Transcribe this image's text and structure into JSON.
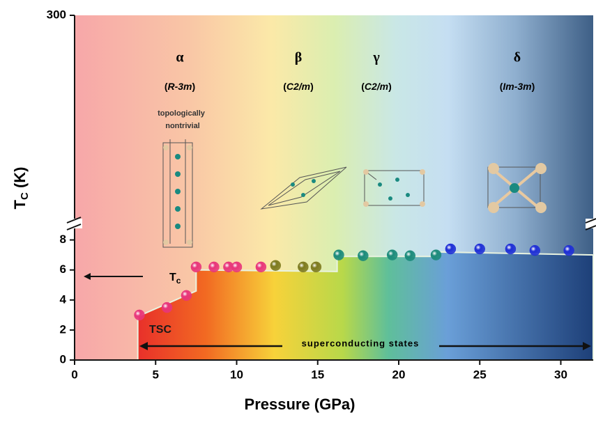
{
  "chart_data": {
    "type": "scatter",
    "xlabel": "Pressure (GPa)",
    "ylabel": [
      "T",
      "C",
      " (K)"
    ],
    "xlim": [
      0,
      32
    ],
    "xticks": [
      0,
      5,
      10,
      15,
      20,
      25,
      30
    ],
    "ylim": [
      0,
      300
    ],
    "ybreak": 9,
    "yticks": [
      0,
      2,
      4,
      6,
      8,
      300
    ],
    "series": [
      {
        "color": "#e8357a",
        "x": [
          4.0,
          5.7,
          6.9,
          7.5,
          8.6,
          9.5,
          10.0,
          11.5
        ],
        "values": [
          3.0,
          3.5,
          4.3,
          6.2,
          6.2,
          6.2,
          6.2,
          6.2
        ]
      },
      {
        "color": "#7d7a1e",
        "x": [
          12.4,
          14.1,
          14.9
        ],
        "values": [
          6.3,
          6.2,
          6.2
        ]
      },
      {
        "color": "#1a8a7a",
        "x": [
          16.3,
          17.8,
          19.6,
          20.7,
          22.3
        ],
        "values": [
          7.0,
          6.95,
          7.0,
          6.95,
          7.0
        ]
      },
      {
        "color": "#1f2fd6",
        "x": [
          23.2,
          25.0,
          26.9,
          28.4,
          30.5
        ],
        "values": [
          7.4,
          7.4,
          7.4,
          7.3,
          7.3
        ]
      }
    ],
    "tsc_boundary": {
      "x": [
        3.9,
        3.9,
        7.5,
        7.5,
        16.2,
        16.2,
        22.4,
        22.4,
        32
      ],
      "values": [
        0,
        2.9,
        4.6,
        6.0,
        5.9,
        6.9,
        6.9,
        7.2,
        7.0
      ]
    },
    "phases": [
      {
        "symbol": "α",
        "group": [
          "R-3m"
        ]
      },
      {
        "symbol": "β",
        "group": [
          "C2/m"
        ]
      },
      {
        "symbol": "γ",
        "group": [
          "C2/m"
        ]
      },
      {
        "symbol": "δ",
        "group": [
          "Im-3m"
        ]
      }
    ],
    "annotations": {
      "topological": [
        "topologically",
        "nontrivial"
      ],
      "tc": [
        "T",
        "c"
      ],
      "tsc": "TSC",
      "states": "superconducting states"
    }
  }
}
